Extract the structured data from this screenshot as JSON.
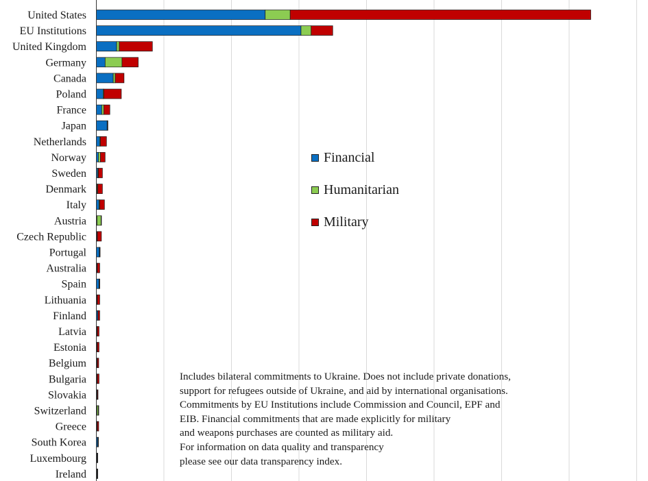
{
  "chart_data": {
    "type": "bar",
    "orientation": "horizontal",
    "stacked": true,
    "title": "",
    "xlabel": "",
    "ylabel": "",
    "xlim": [
      0,
      80
    ],
    "grid": true,
    "legend_position": "center-right",
    "categories": [
      "United States",
      "EU Institutions",
      "United Kingdom",
      "Germany",
      "Canada",
      "Poland",
      "France",
      "Japan",
      "Netherlands",
      "Norway",
      "Sweden",
      "Denmark",
      "Italy",
      "Austria",
      "Czech Republic",
      "Portugal",
      "Australia",
      "Spain",
      "Lithuania",
      "Finland",
      "Latvia",
      "Estonia",
      "Belgium",
      "Bulgaria",
      "Slovakia",
      "Switzerland",
      "Greece",
      "South Korea",
      "Luxembourg",
      "Ireland"
    ],
    "series": [
      {
        "name": "Financial",
        "color": "#0a6fc2",
        "values": [
          25.0,
          30.3,
          3.0,
          1.3,
          2.5,
          1.0,
          0.8,
          1.6,
          0.5,
          0.3,
          0.2,
          0.1,
          0.4,
          0.1,
          0.1,
          0.45,
          0.1,
          0.4,
          0.1,
          0.2,
          0.1,
          0.1,
          0.1,
          0.1,
          0.1,
          0.1,
          0.1,
          0.2,
          0.1,
          0.1
        ]
      },
      {
        "name": "Humanitarian",
        "color": "#8ccc52",
        "values": [
          3.7,
          1.5,
          0.4,
          2.5,
          0.3,
          0.1,
          0.3,
          0.05,
          0.1,
          0.3,
          0.1,
          0.1,
          0.1,
          0.6,
          0.05,
          0.05,
          0.05,
          0.05,
          0.05,
          0.05,
          0.05,
          0.05,
          0.05,
          0.05,
          0.05,
          0.2,
          0.05,
          0.05,
          0.05,
          0.05
        ]
      },
      {
        "name": "Military",
        "color": "#c00000",
        "values": [
          44.5,
          3.2,
          4.9,
          2.4,
          1.3,
          2.6,
          0.9,
          0.05,
          0.9,
          0.7,
          0.6,
          0.7,
          0.7,
          0.05,
          0.6,
          0.05,
          0.35,
          0.05,
          0.35,
          0.25,
          0.25,
          0.25,
          0.2,
          0.25,
          0.1,
          0.05,
          0.2,
          0.05,
          0.05,
          0.05
        ]
      }
    ],
    "annotation": [
      "Includes bilateral commitments to Ukraine. Does not include private donations,",
      "support for refugees outside of Ukraine, and aid by international organisations.",
      "Commitments by EU Institutions include Commission and Council, EPF and",
      "EIB. Financial commitments that are made explicitly for military",
      "and weapons purchases are counted as military aid.",
      "For information on data quality and transparency",
      "please see our data transparency index."
    ]
  }
}
